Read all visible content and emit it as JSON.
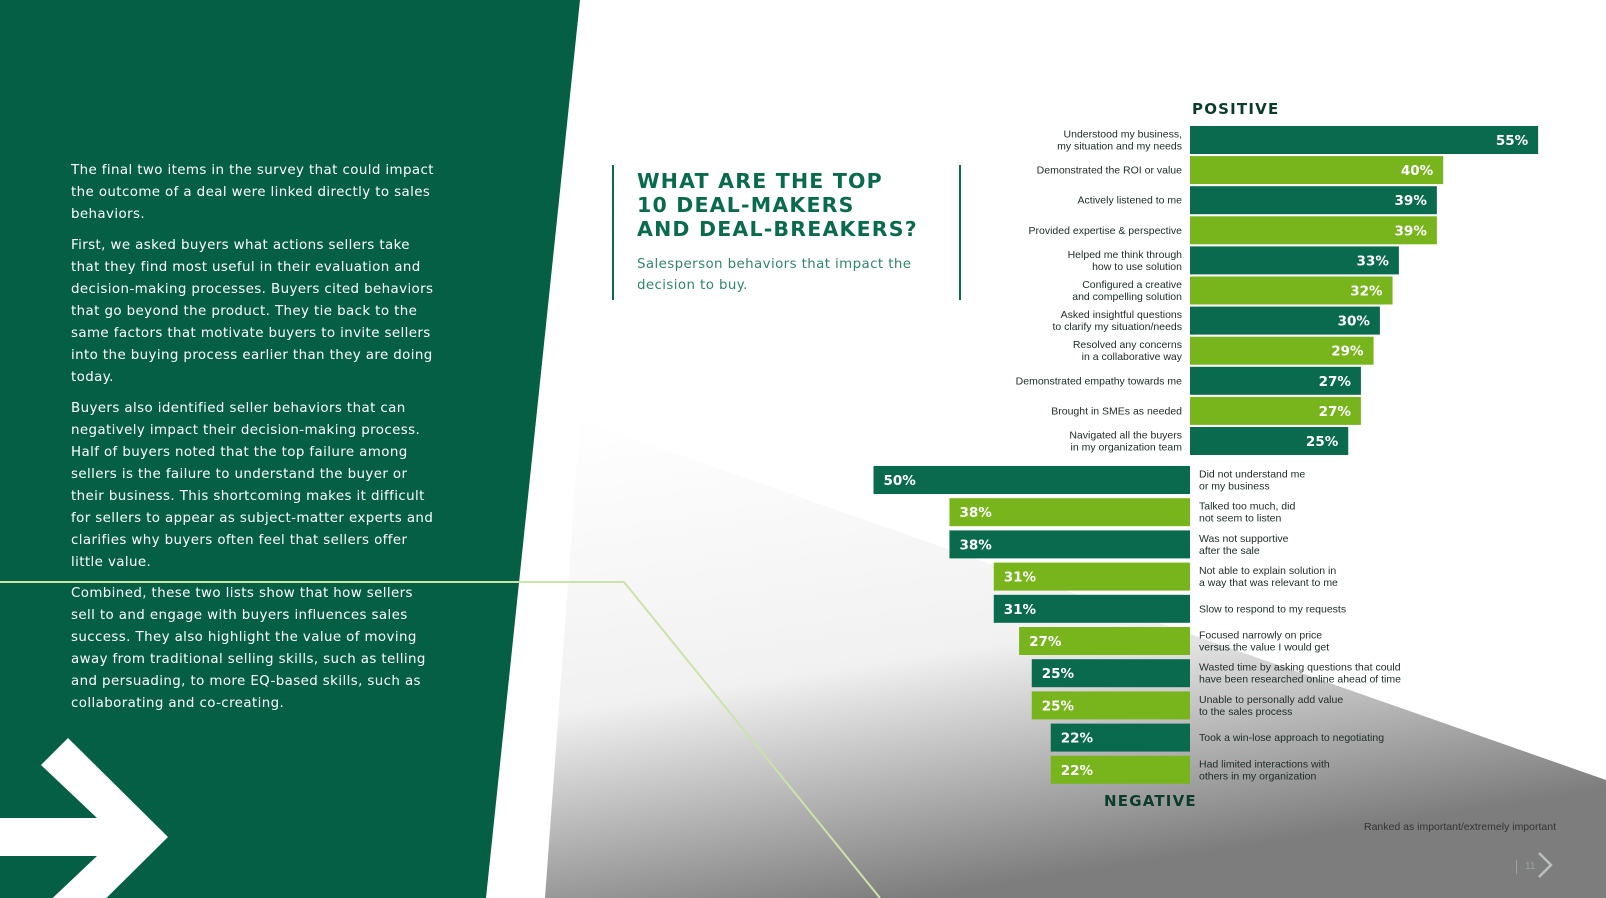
{
  "colors": {
    "dark_green": "#0a6a4d",
    "light_green": "#78b51d",
    "bg_green": "#055f45",
    "accent_line": "#c9e4a8"
  },
  "body": {
    "paragraphs": [
      "The final two items in the survey that could impact the outcome of a deal were linked directly to sales behaviors.",
      "First, we asked buyers what actions sellers take that they find most useful in their evaluation and decision-making processes. Buyers cited behaviors that go beyond the product. They tie back to the same factors that motivate buyers to invite sellers into the buying process earlier than they are doing today.",
      "Buyers also identified seller behaviors that can negatively impact their decision-making process. Half of buyers noted that the top failure among sellers is the failure to understand the buyer or their business. This shortcoming makes it difficult for sellers to appear as subject-matter experts and clarifies why buyers often feel that sellers offer little value.",
      "Combined, these two lists show that how sellers sell to and engage with buyers influences sales success. They also highlight the value of moving away from traditional selling skills, such as telling and persuading, to more EQ-based skills, such as collaborating and co-creating."
    ]
  },
  "headline": {
    "title": "WHAT ARE THE TOP\n10 DEAL-MAKERS\nAND DEAL-BREAKERS?",
    "subtitle": "Salesperson behaviors that impact the decision to buy."
  },
  "chart_data": {
    "type": "bar",
    "title": "WHAT ARE THE TOP 10 DEAL-MAKERS AND DEAL-BREAKERS?",
    "unit": "%",
    "xlim": [
      0,
      55
    ],
    "series": [
      {
        "name": "POSITIVE",
        "direction": "right",
        "categories": [
          "Understood my business,\nmy situation and my needs",
          "Demonstrated the ROI or value",
          "Actively listened to me",
          "Provided expertise & perspective",
          "Helped me think through\nhow to use solution",
          "Configured a creative\nand compelling solution",
          "Asked insightful questions\nto clarify my situation/needs",
          "Resolved any concerns\nin a collaborative way",
          "Demonstrated empathy towards me",
          "Brought in SMEs as needed",
          "Navigated all the buyers\nin my organization team"
        ],
        "values": [
          55,
          40,
          39,
          39,
          33,
          32,
          30,
          29,
          27,
          27,
          25
        ],
        "labels": [
          "55%",
          "40%",
          "39%",
          "39%",
          "33%",
          "32%",
          "30%",
          "29%",
          "27%",
          "27%",
          "25%"
        ]
      },
      {
        "name": "NEGATIVE",
        "direction": "left",
        "categories": [
          "Did not understand me\nor my business",
          "Talked too much, did\nnot seem to listen",
          "Was not supportive\nafter the sale",
          "Not able to explain solution in\na way that was relevant to me",
          "Slow to respond to my requests",
          "Focused narrowly on price\nversus the value I would get",
          "Wasted time by asking questions that could\nhave been researched online ahead of time",
          "Unable to personally add value\nto the sales process",
          "Took a win-lose approach to negotiating",
          "Had limited interactions with\nothers in my organization"
        ],
        "values": [
          50,
          38,
          38,
          31,
          31,
          27,
          25,
          25,
          22,
          22
        ],
        "labels": [
          "50%",
          "38%",
          "38%",
          "31%",
          "31%",
          "27%",
          "25%",
          "25%",
          "22%",
          "22%"
        ]
      }
    ]
  },
  "footnote": "Ranked as important/extremely important",
  "page_number": "11",
  "icons": {
    "big_arrow": "chevron-right-arrow-icon",
    "next": "chevron-right-icon"
  }
}
